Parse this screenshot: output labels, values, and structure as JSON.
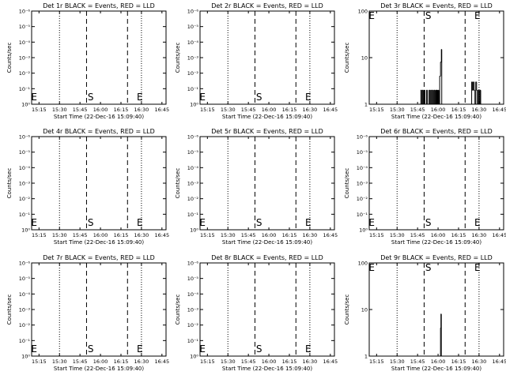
{
  "window": {
    "title": "RHESSI detector count rate panels"
  },
  "chart_data": [
    {
      "type": "line",
      "title": "Det 1r BLACK = Events, RED = LLD",
      "xlabel": "Start Time (22-Dec-16 15:09:40)",
      "ylabel": "Counts/sec",
      "y_scale": "log",
      "xtick_labels": [
        "15:15",
        "15:30",
        "15:45",
        "16:00",
        "16:15",
        "16:30",
        "16:45"
      ],
      "ytick_labels": [
        "10⁰",
        "10⁻¹",
        "10⁻²",
        "10⁻³",
        "10⁻⁴",
        "10⁻⁵",
        "10⁻⁶"
      ],
      "markers": [
        "E",
        "S",
        "E"
      ],
      "series": []
    },
    {
      "type": "line",
      "title": "Det 2r BLACK = Events, RED = LLD",
      "xlabel": "Start Time (22-Dec-16 15:09:40)",
      "ylabel": "Counts/sec",
      "y_scale": "log",
      "xtick_labels": [
        "15:15",
        "15:30",
        "15:45",
        "16:00",
        "16:15",
        "16:30",
        "16:45"
      ],
      "ytick_labels": [
        "10⁰",
        "10⁻¹",
        "10⁻²",
        "10⁻³",
        "10⁻⁴",
        "10⁻⁵",
        "10⁻⁶"
      ],
      "markers": [
        "E",
        "S",
        "E"
      ],
      "series": []
    },
    {
      "type": "line",
      "title": "Det 3r BLACK = Events, RED = LLD",
      "xlabel": "Start Time (22-Dec-16 15:09:40)",
      "ylabel": "Counts/sec",
      "y_scale": "log",
      "xtick_labels": [
        "15:15",
        "15:30",
        "15:45",
        "16:00",
        "16:15",
        "16:30",
        "16:45"
      ],
      "ytick_labels": [
        "1",
        "10",
        "100"
      ],
      "markers": [
        "E",
        "S",
        "E"
      ],
      "series": [
        {
          "values": [
            [
              15.78,
              1
            ],
            [
              15.79,
              2
            ],
            [
              15.8,
              1
            ],
            [
              15.81,
              2
            ],
            [
              15.82,
              1
            ],
            [
              15.83,
              2
            ],
            [
              15.84,
              1
            ],
            [
              15.86,
              2
            ],
            [
              15.87,
              1
            ],
            [
              15.89,
              2
            ],
            [
              15.9,
              1
            ],
            [
              15.91,
              2
            ],
            [
              15.92,
              1
            ],
            [
              15.93,
              2
            ],
            [
              15.94,
              1
            ],
            [
              15.95,
              2
            ],
            [
              15.96,
              1
            ],
            [
              15.97,
              2
            ],
            [
              15.98,
              1
            ],
            [
              15.985,
              2
            ],
            [
              15.99,
              1
            ],
            [
              15.995,
              2
            ],
            [
              16.0,
              1
            ],
            [
              16.005,
              2
            ],
            [
              16.01,
              1
            ],
            [
              16.02,
              4
            ],
            [
              16.03,
              8
            ],
            [
              16.04,
              15
            ],
            [
              16.045,
              1
            ],
            [
              16.4,
              1
            ],
            [
              16.41,
              3
            ],
            [
              16.42,
              2
            ],
            [
              16.43,
              3
            ],
            [
              16.44,
              2
            ],
            [
              16.45,
              1
            ],
            [
              16.46,
              3
            ],
            [
              16.47,
              2
            ],
            [
              16.48,
              1
            ],
            [
              16.49,
              2
            ],
            [
              16.5,
              1
            ],
            [
              16.51,
              2
            ],
            [
              16.52,
              1
            ],
            [
              16.53,
              1
            ]
          ]
        }
      ]
    },
    {
      "type": "line",
      "title": "Det 4r BLACK = Events, RED = LLD",
      "xlabel": "Start Time (22-Dec-16 15:09:40)",
      "ylabel": "Counts/sec",
      "y_scale": "log",
      "xtick_labels": [
        "15:15",
        "15:30",
        "15:45",
        "16:00",
        "16:15",
        "16:30",
        "16:45"
      ],
      "ytick_labels": [
        "10⁰",
        "10⁻¹",
        "10⁻²",
        "10⁻³",
        "10⁻⁴",
        "10⁻⁵",
        "10⁻⁶"
      ],
      "markers": [
        "E",
        "S",
        "E"
      ],
      "series": []
    },
    {
      "type": "line",
      "title": "Det 5r BLACK = Events, RED = LLD",
      "xlabel": "Start Time (22-Dec-16 15:09:40)",
      "ylabel": "Counts/sec",
      "y_scale": "log",
      "xtick_labels": [
        "15:15",
        "15:30",
        "15:45",
        "16:00",
        "16:15",
        "16:30",
        "16:45"
      ],
      "ytick_labels": [
        "10⁰",
        "10⁻¹",
        "10⁻²",
        "10⁻³",
        "10⁻⁴",
        "10⁻⁵",
        "10⁻⁶"
      ],
      "markers": [
        "E",
        "S",
        "E"
      ],
      "series": []
    },
    {
      "type": "line",
      "title": "Det 6r BLACK = Events, RED = LLD",
      "xlabel": "Start Time (22-Dec-16 15:09:40)",
      "ylabel": "Counts/sec",
      "y_scale": "log",
      "xtick_labels": [
        "15:15",
        "15:30",
        "15:45",
        "16:00",
        "16:15",
        "16:30",
        "16:45"
      ],
      "ytick_labels": [
        "10⁰",
        "10⁻¹",
        "10⁻²",
        "10⁻³",
        "10⁻⁴",
        "10⁻⁵",
        "10⁻⁶"
      ],
      "markers": [
        "E",
        "S",
        "E"
      ],
      "series": []
    },
    {
      "type": "line",
      "title": "Det 7r BLACK = Events, RED = LLD",
      "xlabel": "Start Time (22-Dec-16 15:09:40)",
      "ylabel": "Counts/sec",
      "y_scale": "log",
      "xtick_labels": [
        "15:15",
        "15:30",
        "15:45",
        "16:00",
        "16:15",
        "16:30",
        "16:45"
      ],
      "ytick_labels": [
        "10⁰",
        "10⁻¹",
        "10⁻²",
        "10⁻³",
        "10⁻⁴",
        "10⁻⁵",
        "10⁻⁶"
      ],
      "markers": [
        "E",
        "S",
        "E"
      ],
      "series": []
    },
    {
      "type": "line",
      "title": "Det 8r BLACK = Events, RED = LLD",
      "xlabel": "Start Time (22-Dec-16 15:09:40)",
      "ylabel": "Counts/sec",
      "y_scale": "log",
      "xtick_labels": [
        "15:15",
        "15:30",
        "15:45",
        "16:00",
        "16:15",
        "16:30",
        "16:45"
      ],
      "ytick_labels": [
        "10⁰",
        "10⁻¹",
        "10⁻²",
        "10⁻³",
        "10⁻⁴",
        "10⁻⁵",
        "10⁻⁶"
      ],
      "markers": [
        "E",
        "S",
        "E"
      ],
      "series": []
    },
    {
      "type": "line",
      "title": "Det 9r BLACK = Events, RED = LLD",
      "xlabel": "Start Time (22-Dec-16 15:09:40)",
      "ylabel": "Counts/sec",
      "y_scale": "log",
      "xtick_labels": [
        "15:15",
        "15:30",
        "15:45",
        "16:00",
        "16:15",
        "16:30",
        "16:45"
      ],
      "ytick_labels": [
        "1",
        "10",
        "100"
      ],
      "markers": [
        "E",
        "S",
        "E"
      ],
      "series": [
        {
          "values": [
            [
              16.02,
              1
            ],
            [
              16.03,
              4
            ],
            [
              16.035,
              8
            ],
            [
              16.04,
              1
            ]
          ]
        }
      ]
    }
  ]
}
